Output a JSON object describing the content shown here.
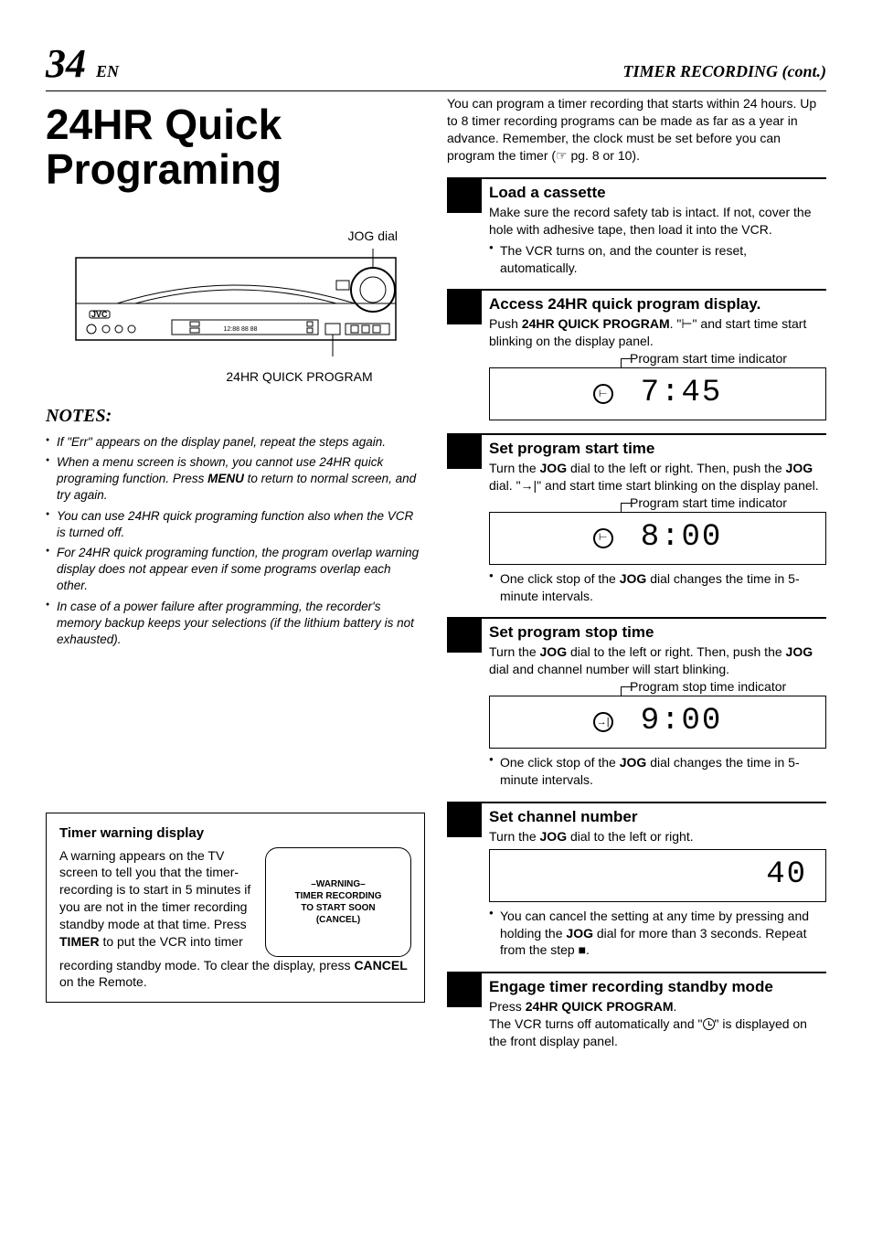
{
  "header": {
    "page_number": "34",
    "page_lang": "EN",
    "section": "TIMER RECORDING (cont.)"
  },
  "title": "24HR Quick Programing",
  "diagram": {
    "jog_label": "JOG dial",
    "program_label": "24HR QUICK PROGRAM",
    "brand": "JVC"
  },
  "notes": {
    "heading": "NOTES:",
    "items": [
      "If \"Err\" appears on the display panel, repeat the steps again.",
      "When a menu screen is shown, you cannot use 24HR quick programing function. Press MENU to return to normal screen, and try again.",
      "You can use 24HR quick programing function also when the VCR is turned off.",
      "For 24HR quick programing function, the program overlap warning display does not appear even if some programs overlap each other.",
      "In case of a power failure after programming, the recorder's memory backup keeps your selections (if the lithium battery is not exhausted)."
    ]
  },
  "warning": {
    "heading": "Timer warning display",
    "text_before": "A warning appears on the TV screen to tell you that the timer-recording is to start in 5 minutes if you are not in the timer recording standby mode at that time. Press ",
    "timer_btn": "TIMER",
    "text_mid": " to put the VCR into timer recording standby mode. To clear the display, press ",
    "cancel_btn": "CANCEL",
    "text_after": " on the Remote.",
    "screen_lines": [
      "–WARNING–",
      "TIMER RECORDING",
      "TO START SOON",
      "(CANCEL)"
    ]
  },
  "intro": "You can program a timer recording that starts within 24 hours. Up to 8 timer recording programs can be made as far as a year in advance. Remember, the clock must be set before you can program the timer (☞ pg. 8 or 10).",
  "steps": [
    {
      "title": "Load a cassette",
      "body": "Make sure the record safety tab is intact. If not, cover the hole with adhesive tape, then load it into the VCR.",
      "bullets": [
        "The VCR turns on, and the counter is reset, automatically."
      ],
      "indicator": null,
      "display": null
    },
    {
      "title": "Access 24HR quick program display.",
      "body_html": "Push <b>24HR QUICK PROGRAM</b>. \"⊢\" and start time start blinking on the display panel.",
      "indicator": "Program start time indicator",
      "display": {
        "icon": "⊢",
        "time": "7:45"
      },
      "bullets": []
    },
    {
      "title": "Set program start time",
      "body_html": "Turn the <b>JOG</b> dial to the left or right. Then, push the <b>JOG</b> dial. \"→|\" and start time start blinking on the display panel.",
      "indicator": "Program start time indicator",
      "display": {
        "icon": "⊢",
        "time": "8:00"
      },
      "bullets": [
        "One click stop of the <b>JOG</b> dial changes the time in 5-minute intervals."
      ]
    },
    {
      "title": "Set program stop time",
      "body_html": "Turn the <b>JOG</b> dial to the left or right. Then, push the <b>JOG</b> dial and channel number will start blinking.",
      "indicator": "Program stop time indicator",
      "display": {
        "icon": "→|",
        "time": "9:00"
      },
      "bullets": [
        "One click stop of the <b>JOG</b> dial changes the time in 5-minute intervals."
      ]
    },
    {
      "title": "Set channel number",
      "body_html": "Turn the <b>JOG</b> dial to the left or right.",
      "indicator": null,
      "display": {
        "icon": null,
        "time": "40",
        "class": "channel-num"
      },
      "bullets": [
        "You can cancel the setting at any time by pressing and holding the <b>JOG</b> dial for more than 3 seconds. Repeat from the step ■."
      ]
    },
    {
      "title": "Engage timer recording standby mode",
      "body_html": "Press <b>24HR QUICK PROGRAM</b>.<br>The VCR turns off automatically and \"<span class='clock-icon'></span>\" is displayed on the front display panel.",
      "indicator": null,
      "display": null,
      "bullets": []
    }
  ],
  "style": {
    "page_bg": "#ffffff",
    "text_color": "#000000",
    "step_num_bg": "#000000",
    "rule_color": "#000000",
    "title_fontsize": 46,
    "step_title_fontsize": 17,
    "seg_fontsize": 34
  }
}
